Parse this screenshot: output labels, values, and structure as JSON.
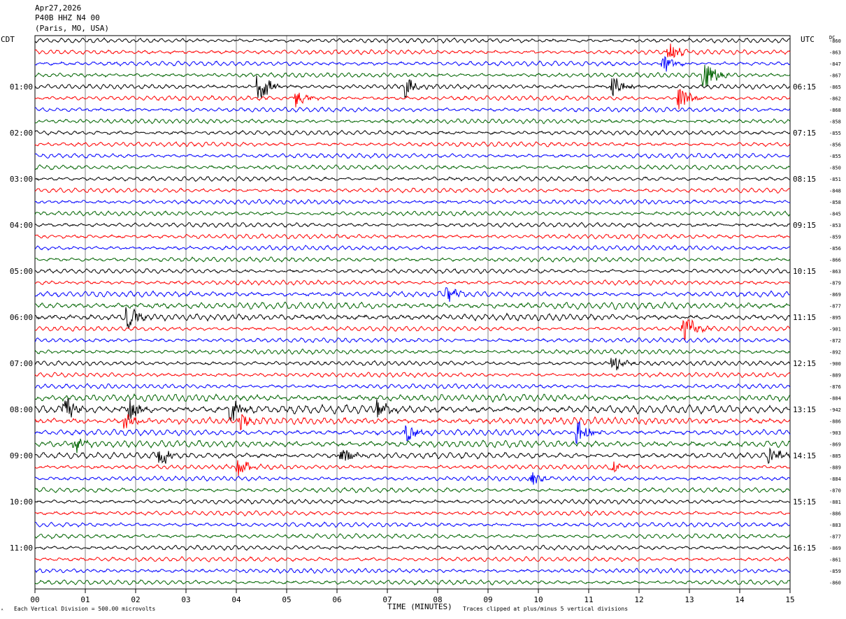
{
  "header": {
    "date": "Apr27,2026",
    "station": "P40B HHZ N4 00",
    "location": "(Paris, MO, USA)"
  },
  "left_axis_label": "CDT",
  "right_axis_label": "UTC",
  "dc_label": "DC",
  "footer": {
    "scale_note": "Each Vertical Division =  500.00 microvolts",
    "xlabel": "TIME (MINUTES)",
    "clip_note": "Traces clipped at plus/minus 5 vertical divisions"
  },
  "colors": {
    "trace_cycle": [
      "#000000",
      "#ff0000",
      "#0000ff",
      "#006400"
    ],
    "grid": "#000000",
    "background": "#ffffff"
  },
  "chart_data": {
    "type": "line",
    "title": "P40B HHZ N4 00",
    "xlabel": "TIME (MINUTES)",
    "xlim": [
      0,
      15
    ],
    "x_ticks": [
      "00",
      "01",
      "02",
      "03",
      "04",
      "05",
      "06",
      "07",
      "08",
      "09",
      "10",
      "11",
      "12",
      "13",
      "14",
      "15"
    ],
    "row_count": 48,
    "minutes_per_row": 15,
    "left_time_labels": [
      "01:00",
      "02:00",
      "03:00",
      "04:00",
      "05:00",
      "06:00",
      "07:00",
      "08:00",
      "09:00",
      "10:00",
      "11:00"
    ],
    "right_time_labels": [
      "06:15",
      "07:15",
      "08:15",
      "09:15",
      "10:15",
      "11:15",
      "12:15",
      "13:15",
      "14:15",
      "15:15",
      "16:15"
    ],
    "dc_offsets": [
      "-860",
      "-863",
      "-847",
      "-867",
      "-865",
      "-862",
      "-868",
      "-858",
      "-855",
      "-856",
      "-855",
      "-850",
      "-851",
      "-848",
      "-858",
      "-845",
      "-853",
      "-859",
      "-856",
      "-866",
      "-863",
      "-879",
      "-869",
      "-877",
      "-895",
      "-901",
      "-872",
      "-892",
      "-900",
      "-889",
      "-876",
      "-884",
      "-942",
      "-886",
      "-903",
      "-869",
      "-885",
      "-889",
      "-884",
      "-870",
      "-881",
      "-886",
      "-883",
      "-877",
      "-869",
      "-861",
      "-859",
      "-860"
    ],
    "noise_amplitude_divisions": [
      1,
      1,
      1,
      1,
      1,
      1,
      1,
      1,
      1,
      1,
      1,
      1,
      1,
      1,
      1,
      1,
      1,
      1,
      1,
      1,
      1,
      1,
      1.2,
      1.5,
      1.4,
      1,
      1,
      1,
      1,
      1,
      1,
      1.5,
      1.8,
      1.5,
      1.3,
      1.5,
      1.3,
      1,
      1,
      1,
      1,
      1,
      1,
      1,
      1,
      1,
      1,
      1
    ],
    "events": [
      {
        "row": 1,
        "minute": 12.6,
        "amplitude": 1.6
      },
      {
        "row": 2,
        "minute": 12.5,
        "amplitude": 1.4
      },
      {
        "row": 3,
        "minute": 13.3,
        "amplitude": 3.0
      },
      {
        "row": 4,
        "minute": 4.45,
        "amplitude": 3.0
      },
      {
        "row": 4,
        "minute": 7.4,
        "amplitude": 1.8
      },
      {
        "row": 4,
        "minute": 11.5,
        "amplitude": 1.6
      },
      {
        "row": 5,
        "minute": 5.2,
        "amplitude": 1.3
      },
      {
        "row": 5,
        "minute": 12.8,
        "amplitude": 2.0
      },
      {
        "row": 22,
        "minute": 8.2,
        "amplitude": 1.2
      },
      {
        "row": 24,
        "minute": 1.85,
        "amplitude": 2.0
      },
      {
        "row": 25,
        "minute": 12.9,
        "amplitude": 2.5
      },
      {
        "row": 28,
        "minute": 11.5,
        "amplitude": 1.2
      },
      {
        "row": 32,
        "minute": 0.6,
        "amplitude": 2.2
      },
      {
        "row": 32,
        "minute": 1.9,
        "amplitude": 2.0
      },
      {
        "row": 32,
        "minute": 3.9,
        "amplitude": 2.2
      },
      {
        "row": 32,
        "minute": 6.8,
        "amplitude": 1.8
      },
      {
        "row": 33,
        "minute": 1.8,
        "amplitude": 1.5
      },
      {
        "row": 33,
        "minute": 4.1,
        "amplitude": 1.2
      },
      {
        "row": 34,
        "minute": 7.4,
        "amplitude": 1.5
      },
      {
        "row": 34,
        "minute": 10.8,
        "amplitude": 2.0
      },
      {
        "row": 35,
        "minute": 0.8,
        "amplitude": 1.5
      },
      {
        "row": 36,
        "minute": 2.5,
        "amplitude": 1.5
      },
      {
        "row": 36,
        "minute": 6.1,
        "amplitude": 1.5
      },
      {
        "row": 36,
        "minute": 14.6,
        "amplitude": 1.6
      },
      {
        "row": 37,
        "minute": 4.05,
        "amplitude": 1.5
      },
      {
        "row": 37,
        "minute": 11.5,
        "amplitude": 0.8
      },
      {
        "row": 38,
        "minute": 9.9,
        "amplitude": 1.0
      }
    ]
  }
}
